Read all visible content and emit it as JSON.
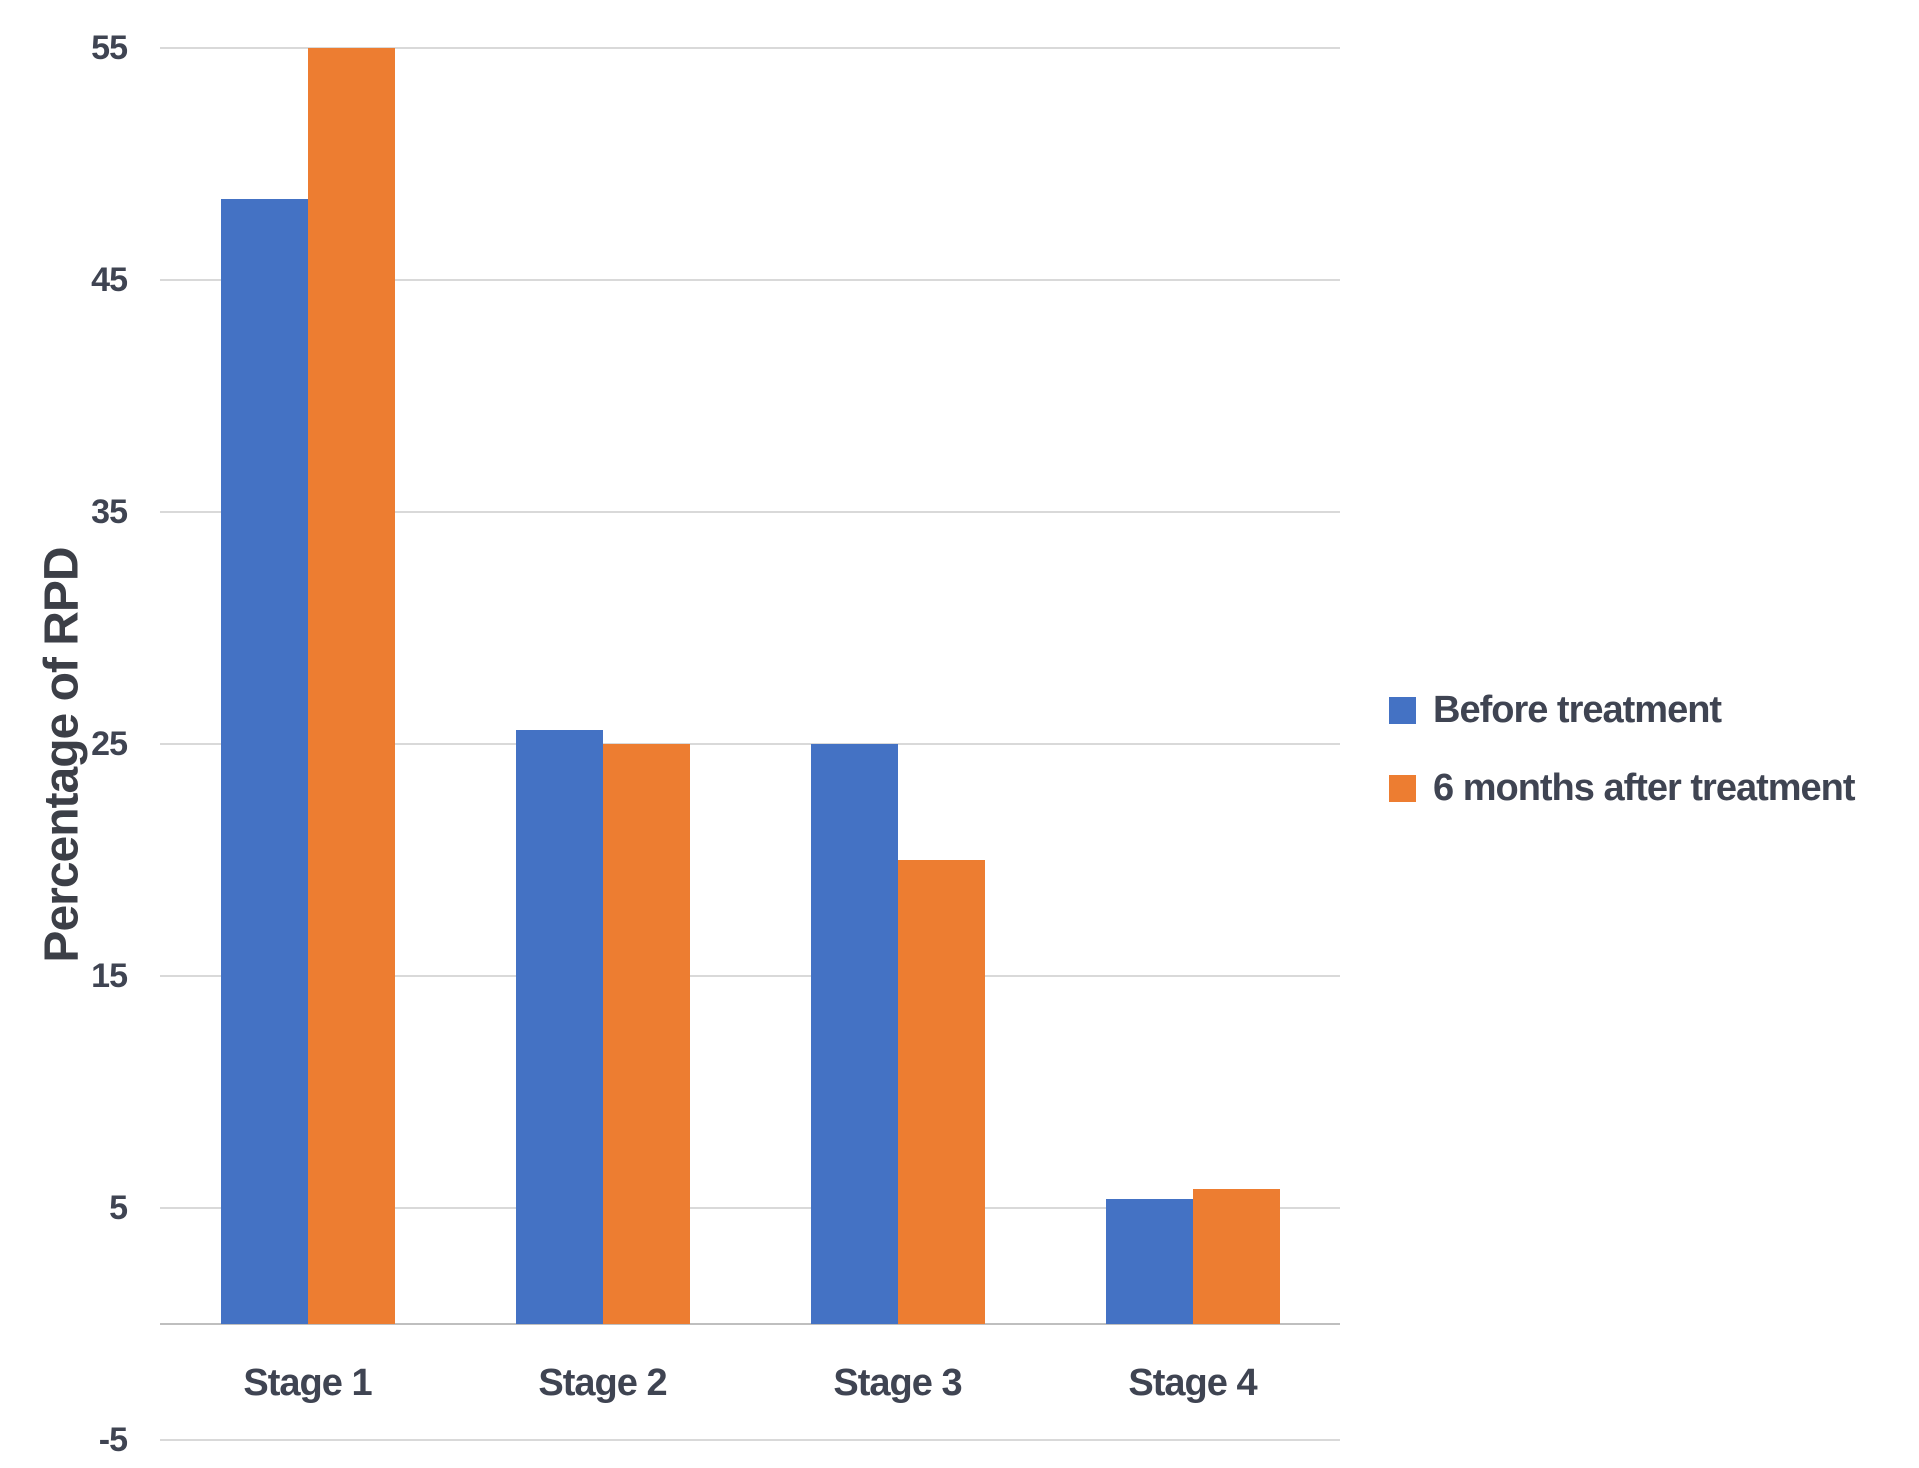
{
  "chart_data": {
    "type": "bar",
    "title": "",
    "ylabel": "Percentage of RPD",
    "xlabel": "",
    "categories": [
      "Stage 1",
      "Stage 2",
      "Stage 3",
      "Stage 4"
    ],
    "series": [
      {
        "name": "Before treatment",
        "color": "#4472C4",
        "values": [
          48.5,
          25.6,
          25,
          5.4
        ]
      },
      {
        "name": "6 months after treatment",
        "color": "#ED7D31",
        "values": [
          55,
          25,
          20,
          5.8
        ]
      }
    ],
    "y_ticks": [
      55,
      45,
      35,
      25,
      15,
      5,
      -5
    ],
    "ylim": [
      -5,
      55
    ],
    "grid": true,
    "legend_position": "right"
  },
  "colors": {
    "gridline": "#D9D9D9",
    "axis_line": "#BFBFBF",
    "text": "#3F4452",
    "background": "#FFFFFF",
    "series_blue": "#4472C4",
    "series_orange": "#ED7D31"
  }
}
